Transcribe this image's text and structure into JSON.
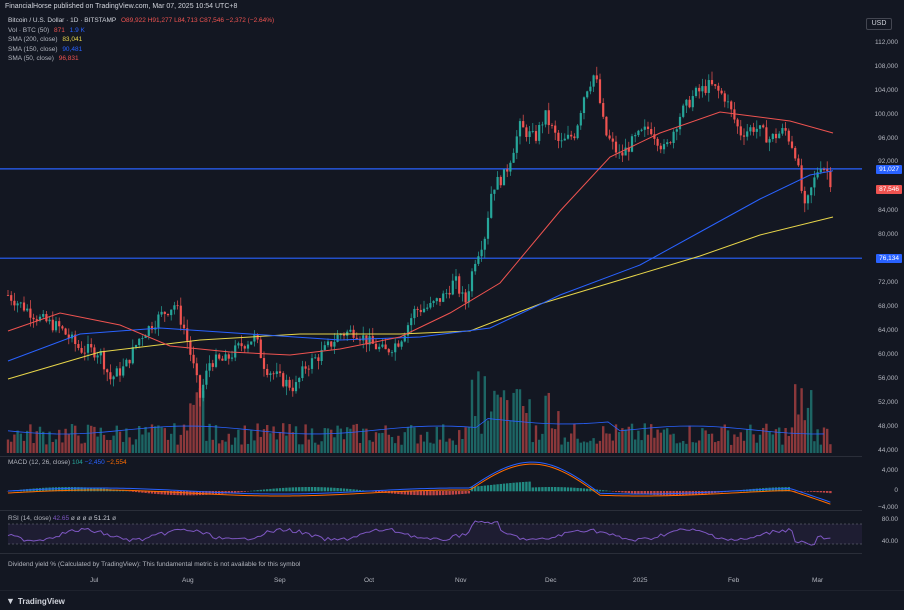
{
  "header": {
    "publisher": "FinancialHorse published on TradingView.com, Mar 07, 2025 10:54 UTC+8"
  },
  "currency": "USD",
  "legend": {
    "symbol": "Bitcoin / U.S. Dollar · 1D · BITSTAMP",
    "open": "O89,922",
    "high": "H91,277",
    "low": "L84,713",
    "close": "C87,546",
    "change": "−2,372 (−2.64%)",
    "vol_label": "Vol · BTC (50)",
    "vol_value": "871",
    "vol_ma": "1.9 K",
    "sma200_label": "SMA (200, close)",
    "sma200_value": "83,041",
    "sma150_label": "SMA (150, close)",
    "sma150_value": "90,481",
    "sma50_label": "SMA (50, close)",
    "sma50_value": "96,831"
  },
  "macd": {
    "label": "MACD (12, 26, close)",
    "v1": "104",
    "v2": "−2,450",
    "v3": "−2,554"
  },
  "rsi": {
    "label": "RSI (14, close)",
    "v1": "42.65",
    "dots": "ø ø ø ø",
    "v2": "51.21",
    "v3": "ø"
  },
  "dividend_note": "Dividend yield % (Calculated by TradingView): This fundamental metric is not available for this symbol",
  "price_axis": [
    "112,000",
    "108,000",
    "104,000",
    "100,000",
    "96,000",
    "92,000",
    "84,000",
    "80,000",
    "72,000",
    "68,000",
    "64,000",
    "60,000",
    "56,000",
    "52,000",
    "48,000",
    "44,000"
  ],
  "price_badges": {
    "line_high": "91,027",
    "last": "87,546",
    "line_low": "76,134"
  },
  "macd_axis": [
    "4,000",
    "0",
    "−4,000"
  ],
  "rsi_axis": [
    "80.00",
    "40.00"
  ],
  "time_axis": [
    "Jul",
    "Aug",
    "Sep",
    "Oct",
    "Nov",
    "Dec",
    "2025",
    "Feb",
    "Mar"
  ],
  "brand": "TradingView",
  "colors": {
    "up": "#26a69a",
    "down": "#ef5350",
    "sma200": "#e8d64a",
    "sma150": "#2962ff",
    "sma50": "#ef5350",
    "hline": "#2962ff",
    "macd": "#2962ff",
    "signal": "#ff6d00",
    "rsi": "#7e57c2"
  }
}
